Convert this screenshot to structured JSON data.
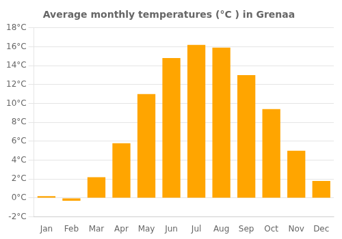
{
  "chart_data": {
    "type": "bar",
    "title": "Average monthly temperatures (°C ) in Grenaa",
    "categories": [
      "Jan",
      "Feb",
      "Mar",
      "Apr",
      "May",
      "Jun",
      "Jul",
      "Aug",
      "Sep",
      "Oct",
      "Nov",
      "Dec"
    ],
    "values": [
      0.2,
      -0.3,
      2.2,
      5.8,
      11.0,
      14.8,
      16.2,
      15.9,
      13.0,
      9.4,
      5.0,
      1.8
    ],
    "color": "#FFA500",
    "ylim": [
      -2,
      18
    ],
    "yticks": [
      {
        "value": -2,
        "label": "-2°C"
      },
      {
        "value": 0,
        "label": "0°C"
      },
      {
        "value": 2,
        "label": "2°C"
      },
      {
        "value": 4,
        "label": "4°C"
      },
      {
        "value": 6,
        "label": "6°C"
      },
      {
        "value": 8,
        "label": "8°C"
      },
      {
        "value": 10,
        "label": "10°C"
      },
      {
        "value": 12,
        "label": "12°C"
      },
      {
        "value": 14,
        "label": "14°C"
      },
      {
        "value": 16,
        "label": "16°C"
      },
      {
        "value": 18,
        "label": "18°C"
      }
    ],
    "grid": true
  }
}
